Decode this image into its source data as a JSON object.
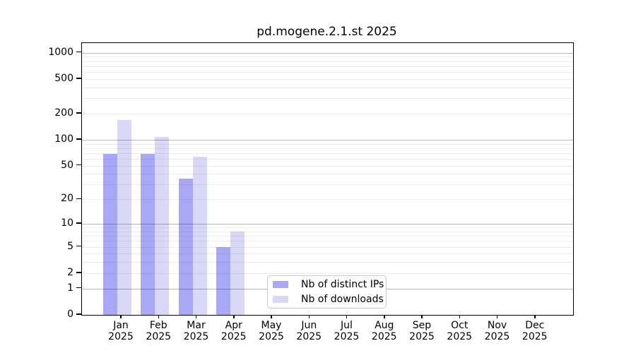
{
  "chart_data": {
    "type": "bar",
    "title": "pd.mogene.2.1.st 2025",
    "year": "2025",
    "categories": [
      "Jan",
      "Feb",
      "Mar",
      "Apr",
      "May",
      "Jun",
      "Jul",
      "Aug",
      "Sep",
      "Oct",
      "Nov",
      "Dec"
    ],
    "series": [
      {
        "name": "Nb of distinct IPs",
        "color": "#a8a8f6",
        "values": [
          68,
          68,
          35,
          5,
          0,
          0,
          0,
          0,
          0,
          0,
          0,
          0
        ]
      },
      {
        "name": "Nb of downloads",
        "color": "#d9d9f7",
        "values": [
          170,
          108,
          64,
          8,
          0,
          0,
          0,
          0,
          0,
          0,
          0,
          0
        ]
      }
    ],
    "xlabel": "",
    "ylabel": "",
    "yscale": "log1p",
    "yticks": [
      0,
      1,
      2,
      5,
      10,
      20,
      50,
      100,
      200,
      500,
      1000
    ],
    "ylim": [
      0,
      1290
    ],
    "grid": true,
    "legend_position": "lower center"
  }
}
